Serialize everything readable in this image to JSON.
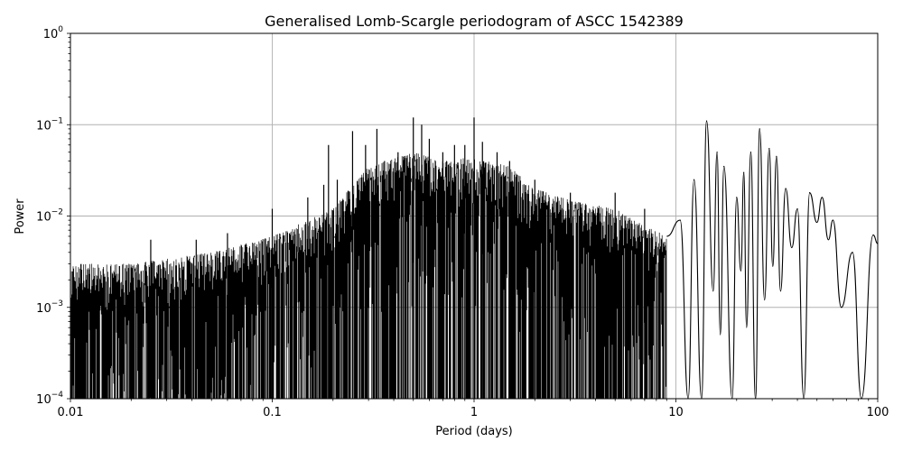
{
  "chart_data": {
    "type": "line",
    "title": "Generalised Lomb-Scargle periodogram of ASCC 1542389",
    "xlabel": "Period (days)",
    "ylabel": "Power",
    "xscale": "log",
    "yscale": "log",
    "xlim": [
      0.01,
      100
    ],
    "ylim": [
      0.0001,
      1
    ],
    "grid": true,
    "x_ticks": [
      {
        "value": 0.01,
        "label": "0.01"
      },
      {
        "value": 0.1,
        "label": "0.1"
      },
      {
        "value": 1,
        "label": "1"
      },
      {
        "value": 10,
        "label": "10"
      },
      {
        "value": 100,
        "label": "100"
      }
    ],
    "y_ticks": [
      {
        "value": 0.0001,
        "base": "10",
        "exponent": "−4"
      },
      {
        "value": 0.001,
        "base": "10",
        "exponent": "−3"
      },
      {
        "value": 0.01,
        "base": "10",
        "exponent": "−2"
      },
      {
        "value": 0.1,
        "base": "10",
        "exponent": "−1"
      },
      {
        "value": 1,
        "base": "10",
        "exponent": "0"
      }
    ],
    "series": [
      {
        "color": "#000000",
        "dense_envelope": {
          "x": [
            0.01,
            0.02,
            0.05,
            0.1,
            0.2,
            0.3,
            0.5,
            0.7,
            1,
            1.5,
            2,
            3,
            5,
            7,
            9
          ],
          "y_max": [
            0.003,
            0.003,
            0.004,
            0.006,
            0.012,
            0.035,
            0.05,
            0.04,
            0.045,
            0.035,
            0.02,
            0.015,
            0.012,
            0.008,
            0.006
          ],
          "y_min": [
            0.0001,
            0.0001,
            0.0001,
            0.0001,
            0.0001,
            0.0001,
            0.0001,
            0.0001,
            0.0001,
            0.0001,
            0.0001,
            0.0001,
            0.0001,
            0.0001,
            0.0001
          ]
        },
        "spikes": [
          {
            "x": 0.025,
            "y": 0.0055
          },
          {
            "x": 0.042,
            "y": 0.0055
          },
          {
            "x": 0.06,
            "y": 0.0065
          },
          {
            "x": 0.1,
            "y": 0.012
          },
          {
            "x": 0.15,
            "y": 0.016
          },
          {
            "x": 0.18,
            "y": 0.022
          },
          {
            "x": 0.19,
            "y": 0.06
          },
          {
            "x": 0.21,
            "y": 0.025
          },
          {
            "x": 0.25,
            "y": 0.085
          },
          {
            "x": 0.29,
            "y": 0.06
          },
          {
            "x": 0.33,
            "y": 0.09
          },
          {
            "x": 0.36,
            "y": 0.04
          },
          {
            "x": 0.42,
            "y": 0.05
          },
          {
            "x": 0.5,
            "y": 0.12
          },
          {
            "x": 0.55,
            "y": 0.1
          },
          {
            "x": 0.6,
            "y": 0.07
          },
          {
            "x": 0.7,
            "y": 0.05
          },
          {
            "x": 0.8,
            "y": 0.06
          },
          {
            "x": 0.9,
            "y": 0.06
          },
          {
            "x": 1.0,
            "y": 0.12
          },
          {
            "x": 1.1,
            "y": 0.065
          },
          {
            "x": 1.3,
            "y": 0.05
          },
          {
            "x": 1.5,
            "y": 0.04
          },
          {
            "x": 2.0,
            "y": 0.025
          },
          {
            "x": 3.0,
            "y": 0.018
          },
          {
            "x": 5.0,
            "y": 0.018
          },
          {
            "x": 7.0,
            "y": 0.012
          }
        ],
        "peaks": [
          {
            "x": 10.5,
            "y": 0.009
          },
          {
            "x": 12.3,
            "y": 0.025
          },
          {
            "x": 14.2,
            "y": 0.11
          },
          {
            "x": 16.0,
            "y": 0.05
          },
          {
            "x": 17.3,
            "y": 0.035
          },
          {
            "x": 20.0,
            "y": 0.016
          },
          {
            "x": 21.7,
            "y": 0.03
          },
          {
            "x": 23.5,
            "y": 0.05
          },
          {
            "x": 26.0,
            "y": 0.09
          },
          {
            "x": 29.0,
            "y": 0.055
          },
          {
            "x": 31.5,
            "y": 0.045
          },
          {
            "x": 35.0,
            "y": 0.02
          },
          {
            "x": 40.0,
            "y": 0.012
          },
          {
            "x": 46.0,
            "y": 0.018
          },
          {
            "x": 53.0,
            "y": 0.016
          },
          {
            "x": 60.0,
            "y": 0.009
          },
          {
            "x": 75.0,
            "y": 0.004
          },
          {
            "x": 95.0,
            "y": 0.0062
          }
        ],
        "troughs": [
          {
            "x": 11.5,
            "y": 0.0001
          },
          {
            "x": 13.4,
            "y": 0.0001
          },
          {
            "x": 15.3,
            "y": 0.0015
          },
          {
            "x": 16.6,
            "y": 0.0005
          },
          {
            "x": 19.0,
            "y": 0.0001
          },
          {
            "x": 21.0,
            "y": 0.0025
          },
          {
            "x": 22.4,
            "y": 0.0006
          },
          {
            "x": 24.8,
            "y": 0.0001
          },
          {
            "x": 27.5,
            "y": 0.0012
          },
          {
            "x": 30.2,
            "y": 0.0028
          },
          {
            "x": 33.0,
            "y": 0.0015
          },
          {
            "x": 37.5,
            "y": 0.0045
          },
          {
            "x": 43.0,
            "y": 0.0001
          },
          {
            "x": 50.0,
            "y": 0.0085
          },
          {
            "x": 57.0,
            "y": 0.0055
          },
          {
            "x": 66.0,
            "y": 0.001
          },
          {
            "x": 83.0,
            "y": 0.0001
          },
          {
            "x": 100.0,
            "y": 0.005
          }
        ]
      }
    ]
  }
}
